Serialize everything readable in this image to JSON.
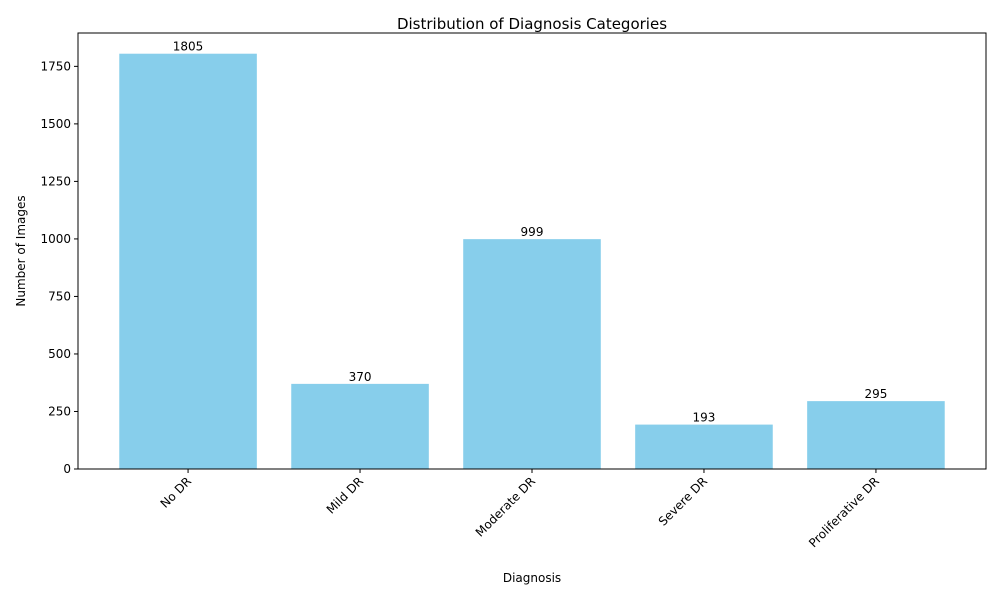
{
  "chart_data": {
    "type": "bar",
    "title": "Distribution of Diagnosis Categories",
    "xlabel": "Diagnosis",
    "ylabel": "Number of Images",
    "categories": [
      "No DR",
      "Mild DR",
      "Moderate DR",
      "Severe DR",
      "Proliferative DR"
    ],
    "values": [
      1805,
      370,
      999,
      193,
      295
    ],
    "data_labels": [
      "1805",
      "370",
      "999",
      "193",
      "295"
    ],
    "yticks": [
      0,
      250,
      500,
      750,
      1000,
      1250,
      1500,
      1750
    ],
    "ytick_labels": [
      "0",
      "250",
      "500",
      "750",
      "1000",
      "1250",
      "1500",
      "1750"
    ],
    "ylim": [
      0,
      1895
    ],
    "x_tick_rotation_deg": 45,
    "grid": false,
    "legend": "none",
    "bar_color": "#87ceeb"
  }
}
